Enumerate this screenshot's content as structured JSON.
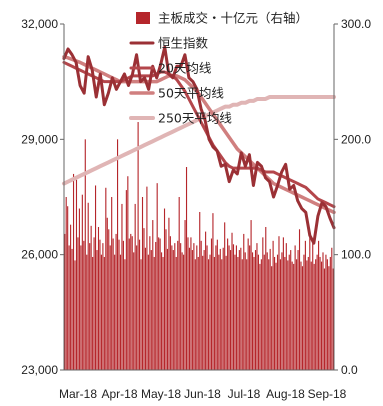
{
  "chart_data": {
    "type": "bar+line",
    "x_labels": [
      "Mar-18",
      "Apr-18",
      "May-18",
      "Jun-18",
      "Jul-18",
      "Aug-18",
      "Sep-18"
    ],
    "left_axis": {
      "min": 23000,
      "max": 32000,
      "ticks": [
        "23,000",
        "26,000",
        "29,000",
        "32,000"
      ],
      "tick_values": [
        23000,
        26000,
        29000,
        32000
      ]
    },
    "right_axis": {
      "min": 0,
      "max": 300,
      "ticks": [
        "0.0",
        "100.0",
        "200.0",
        "300.0"
      ],
      "tick_values": [
        0,
        100,
        200,
        300
      ]
    },
    "legend": {
      "placement": "top-center"
    },
    "colors": {
      "bar": "#b5262b",
      "hsi": "#9b3035",
      "ma20": "#b4464b",
      "ma50": "#d07f7f",
      "ma250": "#e0b5b5"
    },
    "series": [
      {
        "name": "主板成交・十亿元（右轴）",
        "kind": "bar",
        "axis": "right",
        "values": [
          118,
          150,
          142,
          108,
          126,
          105,
          170,
          95,
          165,
          115,
          140,
          108,
          152,
          112,
          200,
          100,
          145,
          110,
          125,
          98,
          115,
          160,
          104,
          124,
          113,
          100,
          110,
          98,
          158,
          132,
          122,
          108,
          150,
          114,
          100,
          118,
          200,
          113,
          100,
          144,
          112,
          96,
          156,
          168,
          114,
          118,
          116,
          102,
          144,
          108,
          215,
          113,
          96,
          150,
          123,
          106,
          159,
          100,
          116,
          104,
          130,
          98,
          111,
          162,
          115,
          114,
          102,
          98,
          140,
          122,
          105,
          132,
          116,
          108,
          104,
          110,
          98,
          112,
          150,
          110,
          102,
          100,
          130,
          176,
          115,
          106,
          115,
          104,
          110,
          96,
          108,
          98,
          137,
          112,
          99,
          104,
          120,
          108,
          96,
          100,
          114,
          136,
          98,
          108,
          113,
          100,
          105,
          96,
          106,
          128,
          99,
          114,
          108,
          104,
          119,
          109,
          100,
          108,
          98,
          104,
          106,
          96,
          118,
          102,
          96,
          114,
          108,
          130,
          102,
          98,
          104,
          110,
          100,
          92,
          96,
          115,
          100,
          124,
          102,
          96,
          105,
          90,
          112,
          98,
          93,
          100,
          116,
          96,
          102,
          115,
          98,
          110,
          95,
          100,
          104,
          94,
          92,
          108,
          96,
          104,
          122,
          94,
          90,
          100,
          112,
          95,
          98,
          118,
          94,
          110,
          92,
          96,
          100,
          112,
          98,
          94,
          102,
          88,
          100,
          96,
          90,
          98,
          106,
          88
        ]
      },
      {
        "name": "恒生指数",
        "kind": "line",
        "axis": "left",
        "values": [
          31100,
          31350,
          31200,
          31000,
          30400,
          30200,
          31150,
          30800,
          30100,
          30700,
          29900,
          30200,
          30600,
          30300,
          30500,
          30700,
          30400,
          30700,
          31200,
          30500,
          30600,
          30300,
          30900,
          30600,
          30950,
          31400,
          30700,
          30600,
          30900,
          30900,
          31200,
          30600,
          30500,
          30300,
          29800,
          29500,
          29000,
          28800,
          28700,
          28300,
          28350,
          27900,
          28200,
          28100,
          28650,
          28300,
          28600,
          27800,
          28400,
          28300,
          28000,
          27900,
          27500,
          27800,
          28150,
          28350,
          27700,
          27800,
          27400,
          27200,
          27100,
          26500,
          26300,
          27000,
          27350,
          27250,
          26950,
          26700
        ]
      },
      {
        "name": "20天均线",
        "kind": "line",
        "axis": "left",
        "values": [
          31000,
          30950,
          30900,
          30850,
          30800,
          30750,
          30700,
          30650,
          30600,
          30550,
          30500,
          30500,
          30500,
          30500,
          30500,
          30550,
          30600,
          30650,
          30650,
          30650,
          30650,
          30650,
          30650,
          30700,
          30750,
          30750,
          30700,
          30650,
          30550,
          30400,
          30250,
          30050,
          29850,
          29650,
          29450,
          29250,
          29050,
          28850,
          28700,
          28550,
          28400,
          28300,
          28250,
          28250,
          28250,
          28250,
          28250,
          28250,
          28250,
          28200,
          28150,
          28150,
          28150,
          28100,
          28050,
          28000,
          27950,
          27900,
          27850,
          27800,
          27750,
          27650,
          27550,
          27450,
          27400,
          27350,
          27300,
          27250
        ]
      },
      {
        "name": "50天平均线",
        "kind": "line",
        "axis": "left",
        "values": [
          31150,
          31120,
          31080,
          31040,
          31000,
          30950,
          30900,
          30850,
          30800,
          30750,
          30700,
          30650,
          30600,
          30550,
          30500,
          30500,
          30500,
          30500,
          30500,
          30500,
          30500,
          30500,
          30500,
          30500,
          30550,
          30600,
          30650,
          30650,
          30650,
          30600,
          30550,
          30450,
          30350,
          30250,
          30100,
          29950,
          29800,
          29650,
          29500,
          29350,
          29200,
          29050,
          28900,
          28750,
          28650,
          28550,
          28450,
          28350,
          28250,
          28150,
          28050,
          27950,
          27850,
          27800,
          27750,
          27700,
          27650,
          27600,
          27550,
          27500,
          27450,
          27400,
          27350,
          27300,
          27250,
          27200,
          27150,
          27100
        ]
      },
      {
        "name": "250天平均线",
        "kind": "line",
        "axis": "left",
        "values": [
          27850,
          27900,
          27950,
          28000,
          28050,
          28100,
          28150,
          28200,
          28250,
          28300,
          28350,
          28400,
          28450,
          28500,
          28550,
          28600,
          28650,
          28700,
          28750,
          28800,
          28850,
          28900,
          28950,
          29000,
          29050,
          29100,
          29150,
          29200,
          29250,
          29300,
          29350,
          29400,
          29450,
          29500,
          29550,
          29600,
          29650,
          29700,
          29750,
          29800,
          29850,
          29850,
          29900,
          29900,
          29950,
          29950,
          30000,
          30000,
          30050,
          30050,
          30050,
          30100,
          30100,
          30100,
          30100,
          30100,
          30100,
          30100,
          30100,
          30100,
          30100,
          30100,
          30100,
          30100,
          30100,
          30100,
          30100,
          30100
        ]
      }
    ]
  }
}
